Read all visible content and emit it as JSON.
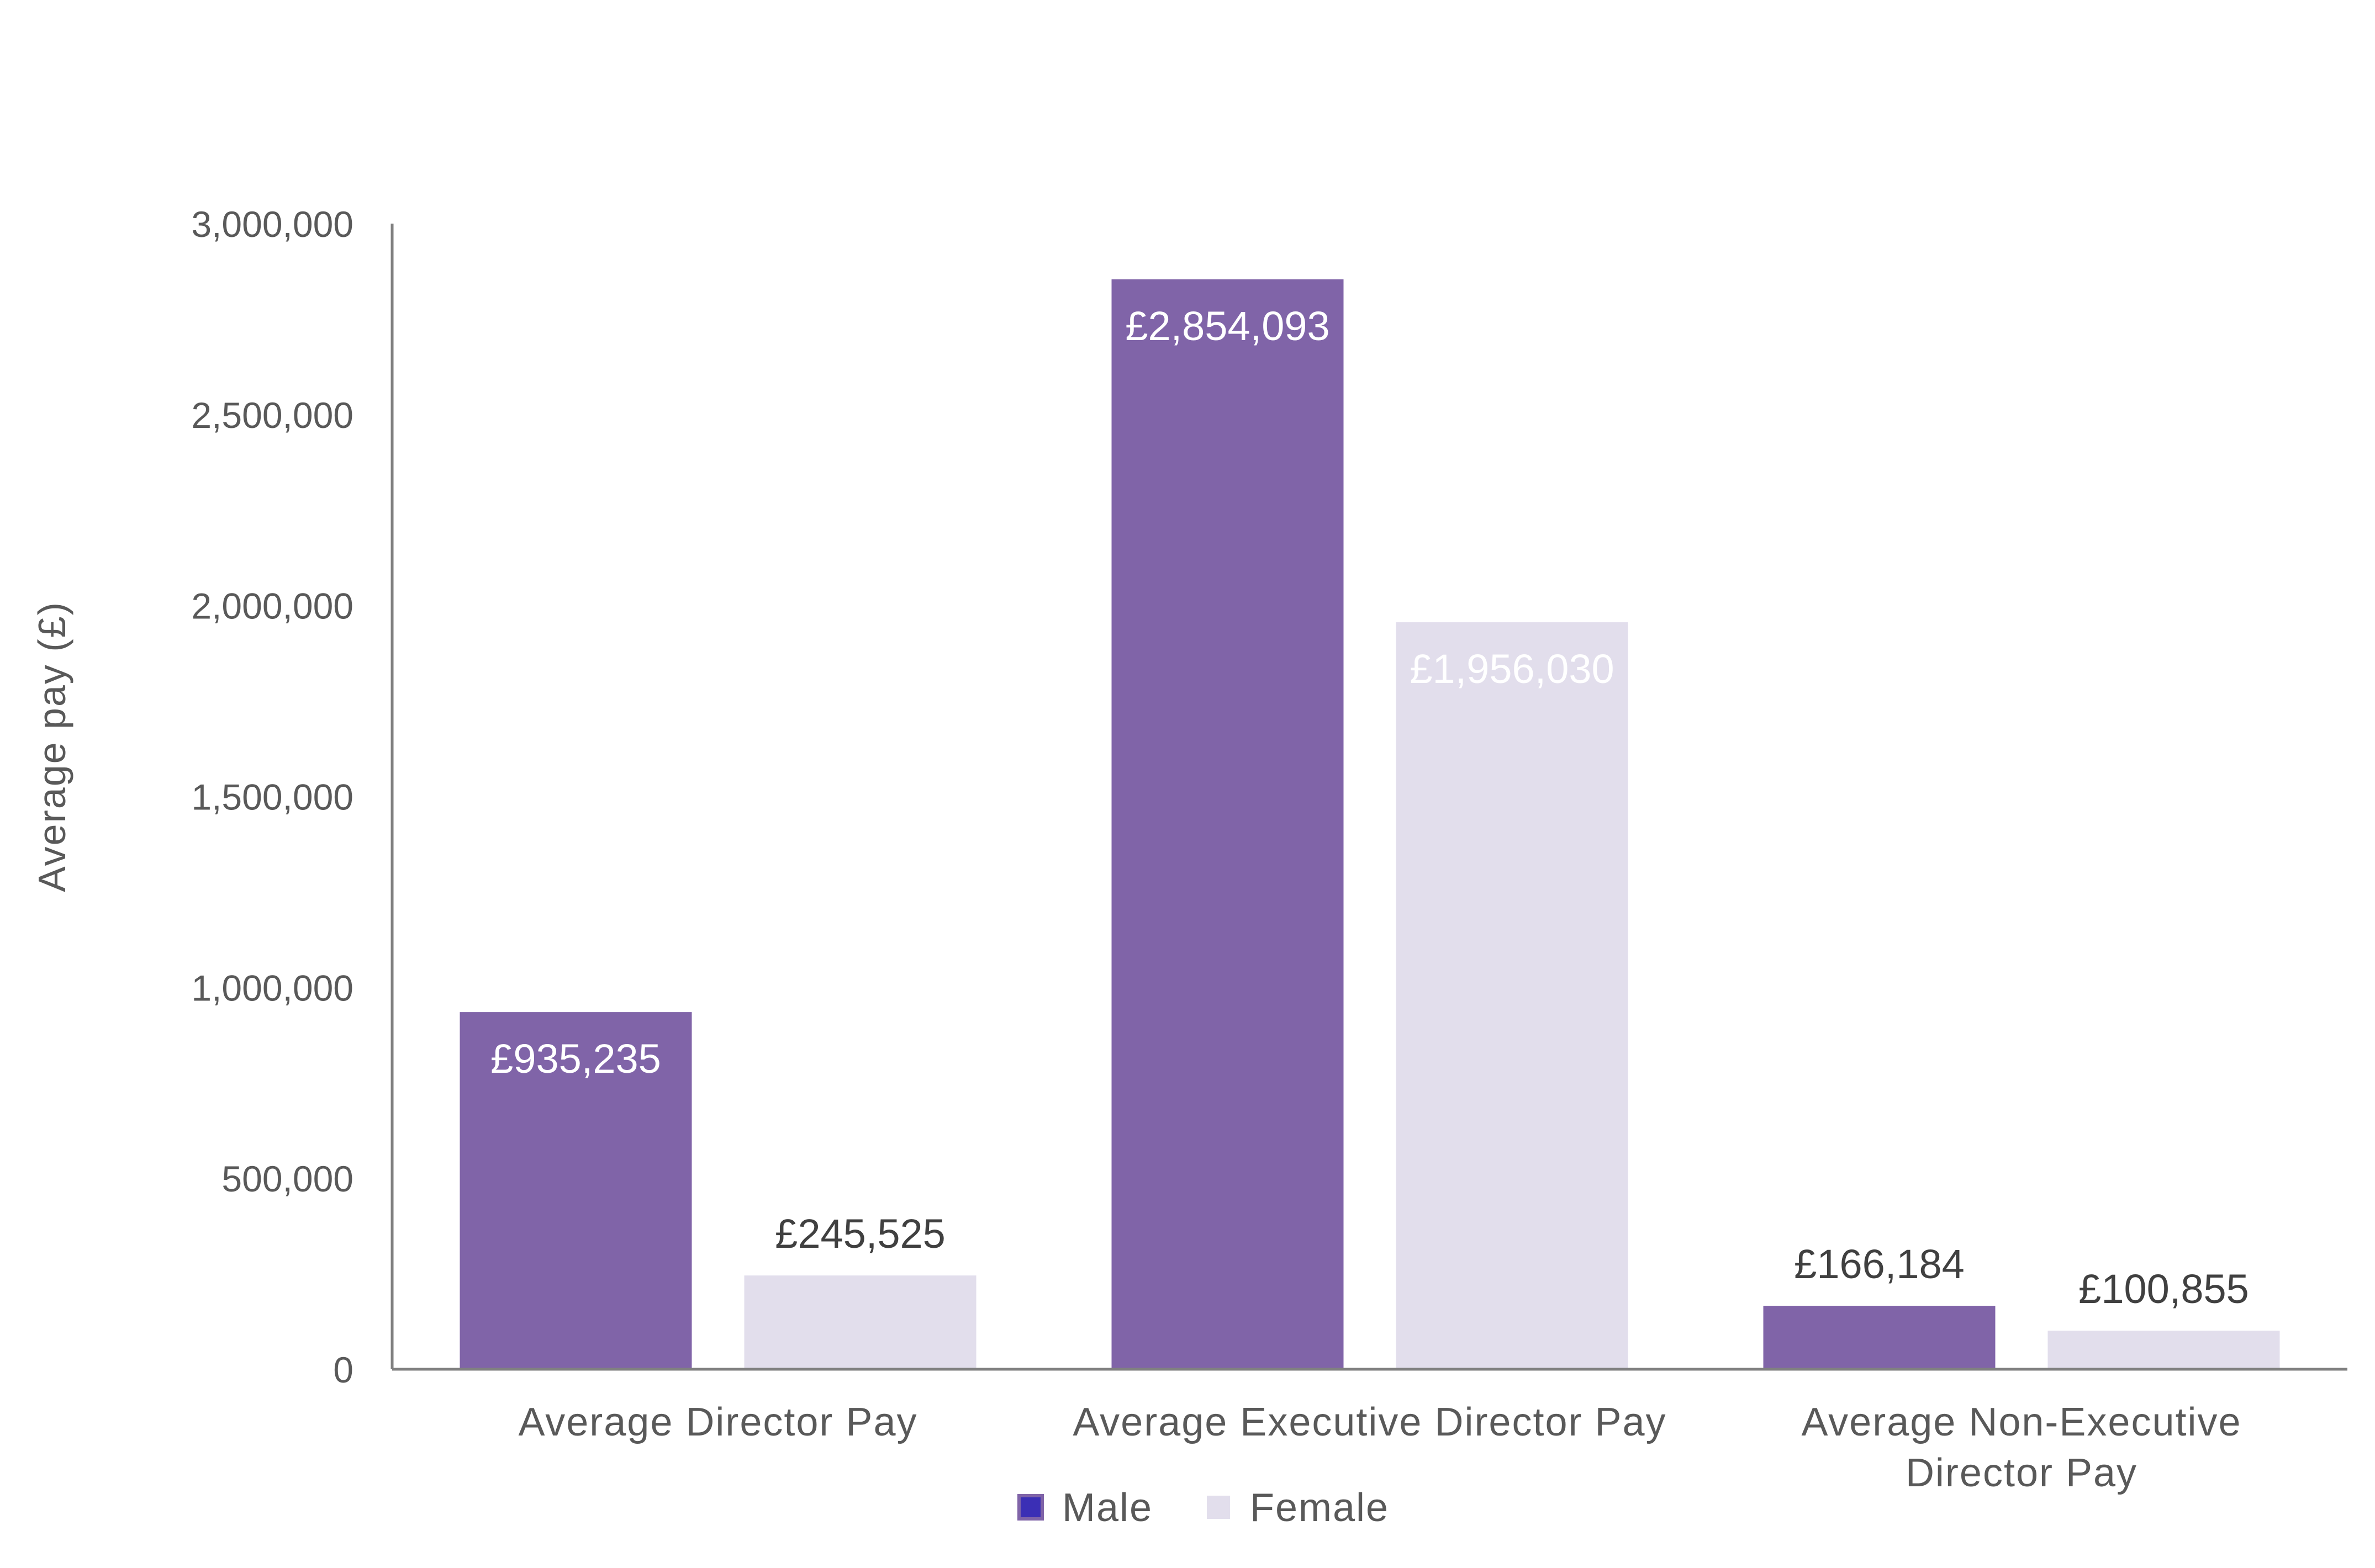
{
  "chart_data": {
    "type": "bar",
    "categories": [
      [
        "Average Director Pay"
      ],
      [
        "Average Executive Director Pay"
      ],
      [
        "Average Non-Executive",
        "Director Pay"
      ]
    ],
    "series": [
      {
        "name": "Male",
        "values": [
          935235,
          2854093,
          166184
        ],
        "labels": [
          "£935,235",
          "£2,854,093",
          "£166,184"
        ]
      },
      {
        "name": "Female",
        "values": [
          245525,
          1956030,
          100855
        ],
        "labels": [
          "£245,525",
          "£1,956,030",
          "£100,855"
        ]
      }
    ],
    "ylabel": "Average pay (£)",
    "ylim": [
      0,
      3000000
    ],
    "yticks": [
      0,
      500000,
      1000000,
      1500000,
      2000000,
      2500000,
      3000000
    ],
    "ytick_labels": [
      "0",
      "500,000",
      "1,000,000",
      "1,500,000",
      "2,000,000",
      "2,500,000",
      "3,000,000"
    ],
    "grid": false,
    "legend_position": "bottom",
    "colors": {
      "male": "#8064A8",
      "female": "#E2DEEC",
      "male_legend": "#3B2FB5",
      "axis": "#808080"
    }
  }
}
